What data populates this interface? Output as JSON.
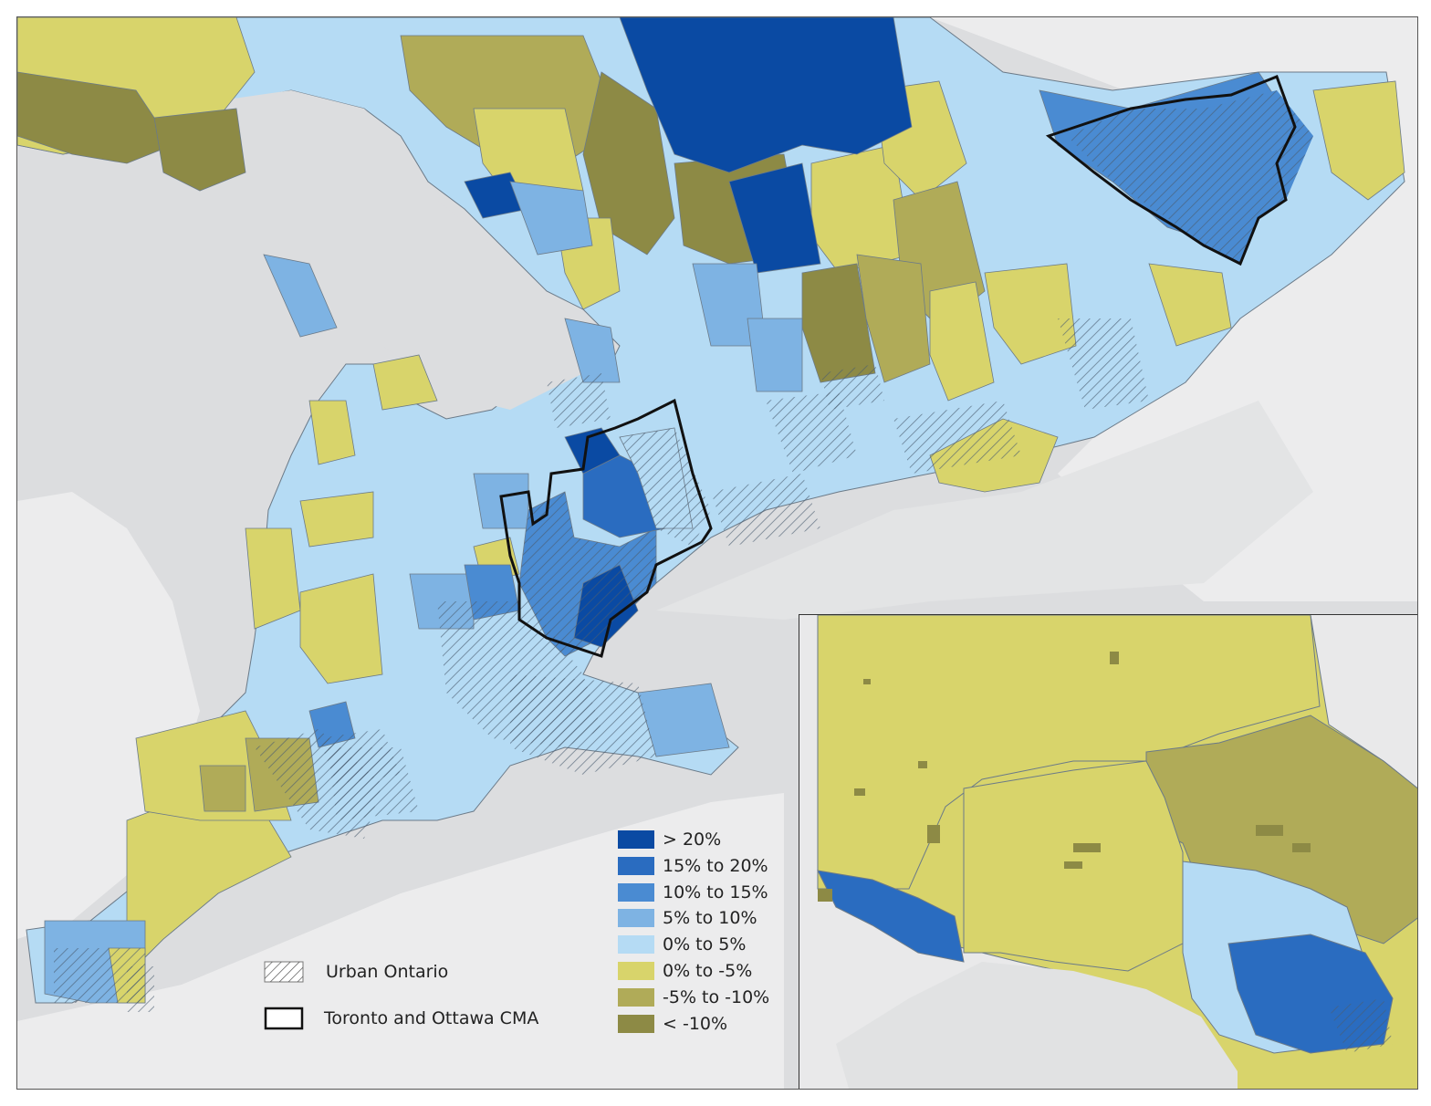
{
  "legend": {
    "items": [
      {
        "label": "> 20%",
        "color": "#0a4aa3"
      },
      {
        "label": "15% to 20%",
        "color": "#2a6cc0"
      },
      {
        "label": "10% to 15%",
        "color": "#4a8bd2"
      },
      {
        "label": "5% to 10%",
        "color": "#7eb3e3"
      },
      {
        "label": "0% to 5%",
        "color": "#b5dbf4"
      },
      {
        "label": "0% to -5%",
        "color": "#d8d46b"
      },
      {
        "label": "-5% to -10%",
        "color": "#b0ab58"
      },
      {
        "label": "< -10%",
        "color": "#8d8a45"
      }
    ],
    "urban_label": "Urban Ontario",
    "cma_label": "Toronto and Ottawa CMA"
  },
  "colors": {
    "water": "#dcdddf",
    "land_outside": "#ededee",
    "boundary": "#6b7a88",
    "cma_outline": "#111111",
    "hatch": "#5a6a7c"
  }
}
